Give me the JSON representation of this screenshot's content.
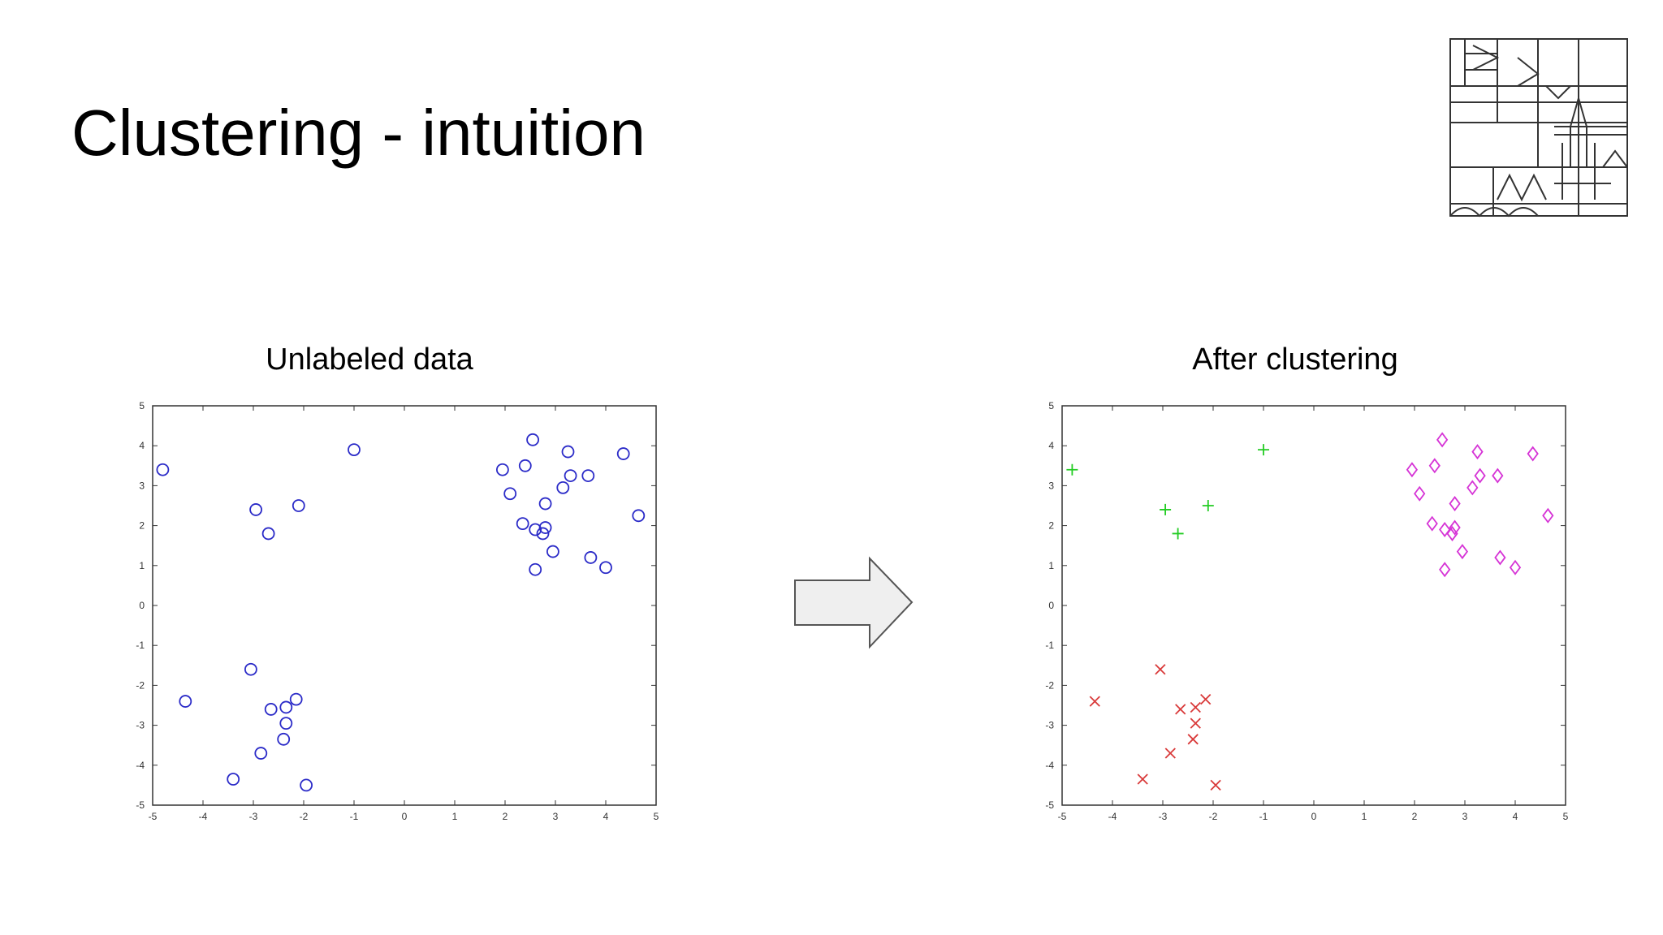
{
  "slide": {
    "title": "Clustering - intuition"
  },
  "logo": {
    "icon": "university-building-logo-icon"
  },
  "arrow": {
    "icon": "right-arrow-icon"
  },
  "chart_data": [
    {
      "type": "scatter",
      "title": "Unlabeled data",
      "xlabel": "",
      "ylabel": "",
      "xlim": [
        -5,
        5
      ],
      "ylim": [
        -5,
        5
      ],
      "xticks": [
        "-5",
        "-4",
        "-3",
        "-2",
        "-1",
        "0",
        "1",
        "2",
        "3",
        "4",
        "5"
      ],
      "yticks": [
        "5",
        "4",
        "3",
        "2",
        "1",
        "0",
        "-1",
        "-2",
        "-3",
        "-4",
        "-5"
      ],
      "grid": false,
      "series": [
        {
          "marker": "circle",
          "color": "#2b2bc8",
          "points": [
            [
              -4.8,
              3.4
            ],
            [
              -1,
              3.9
            ],
            [
              -2.95,
              2.4
            ],
            [
              -2.7,
              1.8
            ],
            [
              -2.1,
              2.5
            ],
            [
              1.95,
              3.4
            ],
            [
              2.55,
              4.15
            ],
            [
              2.4,
              3.5
            ],
            [
              2.1,
              2.8
            ],
            [
              3.25,
              3.85
            ],
            [
              3.3,
              3.25
            ],
            [
              3.15,
              2.95
            ],
            [
              3.65,
              3.25
            ],
            [
              2.8,
              2.55
            ],
            [
              4.35,
              3.8
            ],
            [
              2.35,
              2.05
            ],
            [
              2.6,
              1.9
            ],
            [
              2.8,
              1.95
            ],
            [
              2.75,
              1.8
            ],
            [
              2.95,
              1.35
            ],
            [
              3.7,
              1.2
            ],
            [
              4.0,
              0.95
            ],
            [
              4.65,
              2.25
            ],
            [
              2.6,
              0.9
            ],
            [
              -3.05,
              -1.6
            ],
            [
              -4.35,
              -2.4
            ],
            [
              -2.65,
              -2.6
            ],
            [
              -2.35,
              -2.55
            ],
            [
              -2.15,
              -2.35
            ],
            [
              -2.35,
              -2.95
            ],
            [
              -2.4,
              -3.35
            ],
            [
              -2.85,
              -3.7
            ],
            [
              -3.4,
              -4.35
            ],
            [
              -1.95,
              -4.5
            ]
          ]
        }
      ]
    },
    {
      "type": "scatter",
      "title": "After clustering",
      "xlabel": "",
      "ylabel": "",
      "xlim": [
        -5,
        5
      ],
      "ylim": [
        -5,
        5
      ],
      "xticks": [
        "-5",
        "-4",
        "-3",
        "-2",
        "-1",
        "0",
        "1",
        "2",
        "3",
        "4",
        "5"
      ],
      "yticks": [
        "5",
        "4",
        "3",
        "2",
        "1",
        "0",
        "-1",
        "-2",
        "-3",
        "-4",
        "-5"
      ],
      "grid": false,
      "series": [
        {
          "marker": "plus",
          "color": "#22cc22",
          "points": [
            [
              -4.8,
              3.4
            ],
            [
              -1,
              3.9
            ],
            [
              -2.95,
              2.4
            ],
            [
              -2.7,
              1.8
            ],
            [
              -2.1,
              2.5
            ]
          ]
        },
        {
          "marker": "diamond",
          "color": "#d633d6",
          "points": [
            [
              1.95,
              3.4
            ],
            [
              2.55,
              4.15
            ],
            [
              2.4,
              3.5
            ],
            [
              2.1,
              2.8
            ],
            [
              3.25,
              3.85
            ],
            [
              3.3,
              3.25
            ],
            [
              3.15,
              2.95
            ],
            [
              3.65,
              3.25
            ],
            [
              2.8,
              2.55
            ],
            [
              4.35,
              3.8
            ],
            [
              2.35,
              2.05
            ],
            [
              2.6,
              1.9
            ],
            [
              2.8,
              1.95
            ],
            [
              2.75,
              1.8
            ],
            [
              2.95,
              1.35
            ],
            [
              3.7,
              1.2
            ],
            [
              4.0,
              0.95
            ],
            [
              4.65,
              2.25
            ],
            [
              2.6,
              0.9
            ]
          ]
        },
        {
          "marker": "x",
          "color": "#d93a3a",
          "points": [
            [
              -3.05,
              -1.6
            ],
            [
              -4.35,
              -2.4
            ],
            [
              -2.65,
              -2.6
            ],
            [
              -2.35,
              -2.55
            ],
            [
              -2.15,
              -2.35
            ],
            [
              -2.35,
              -2.95
            ],
            [
              -2.4,
              -3.35
            ],
            [
              -2.85,
              -3.7
            ],
            [
              -3.4,
              -4.35
            ],
            [
              -1.95,
              -4.5
            ]
          ]
        }
      ]
    }
  ]
}
